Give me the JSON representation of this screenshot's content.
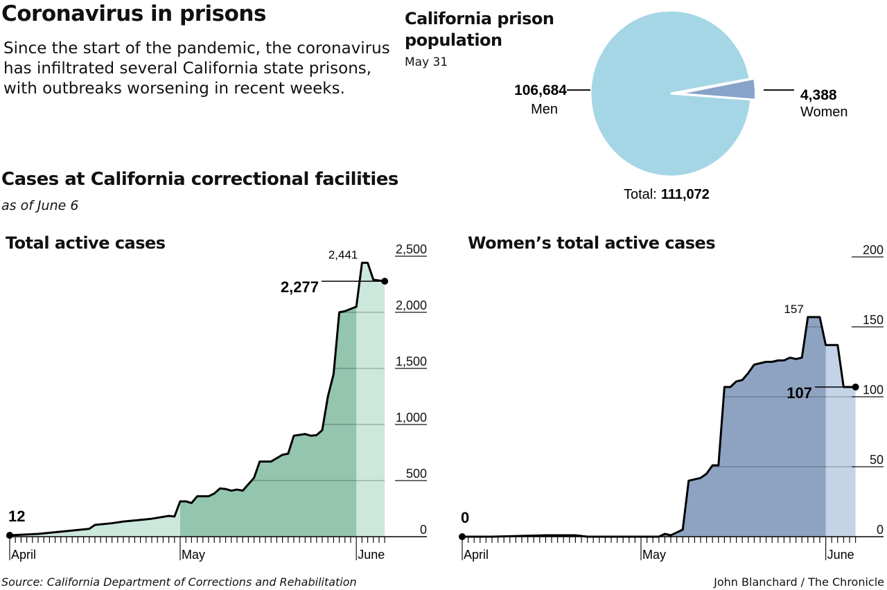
{
  "header": {
    "title": "Coronavirus in prisons",
    "dek": "Since the start of the pandemic, the coronavirus has infiltrated several California state prisons, with outbreaks worsening in recent weeks."
  },
  "section": {
    "title": "Cases at California correctional facilities",
    "subtitle": "as of June 6"
  },
  "footer": {
    "source": "Source:  California Department of Corrections and Rehabilitation",
    "credit": "John Blanchard / The Chronicle"
  },
  "chart_data": [
    {
      "type": "pie",
      "title": "California prison population",
      "subtitle": "May 31",
      "slices": [
        {
          "name": "Men",
          "label": "106,684",
          "value": 106684,
          "color": "#a5d6e6"
        },
        {
          "name": "Women",
          "label": "4,388",
          "value": 4388,
          "color": "#87a3c9"
        }
      ],
      "total_label": "Total:",
      "total_value": "111,072"
    },
    {
      "type": "area",
      "title": "Total active cases",
      "ylim": [
        0,
        2500
      ],
      "yticks": [
        0,
        500,
        1000,
        1500,
        2000,
        2500
      ],
      "ytick_labels": [
        "0",
        "500",
        "1,000",
        "1,500",
        "2,000",
        "2,500"
      ],
      "xticks": [
        "April",
        "May",
        "June"
      ],
      "grid": true,
      "colors": {
        "light": "#cce7db",
        "dark": "#93c5af"
      },
      "annotations": {
        "start": "12",
        "peak": "2,441",
        "latest": "2,277"
      },
      "points": [
        [
          "Apr 1",
          12
        ],
        [
          "Apr 6",
          25
        ],
        [
          "Apr 12",
          55
        ],
        [
          "Apr 15",
          70
        ],
        [
          "Apr 16",
          105
        ],
        [
          "Apr 19",
          120
        ],
        [
          "Apr 21",
          135
        ],
        [
          "Apr 24",
          150
        ],
        [
          "Apr 26",
          160
        ],
        [
          "Apr 29",
          185
        ],
        [
          "Apr 30",
          180
        ],
        [
          "May 1",
          315
        ],
        [
          "May 2",
          315
        ],
        [
          "May 3",
          300
        ],
        [
          "May 4",
          360
        ],
        [
          "May 6",
          360
        ],
        [
          "May 7",
          385
        ],
        [
          "May 8",
          430
        ],
        [
          "May 9",
          425
        ],
        [
          "May 10",
          410
        ],
        [
          "May 11",
          420
        ],
        [
          "May 12",
          410
        ],
        [
          "May 14",
          525
        ],
        [
          "May 15",
          670
        ],
        [
          "May 17",
          670
        ],
        [
          "May 19",
          730
        ],
        [
          "May 20",
          740
        ],
        [
          "May 21",
          900
        ],
        [
          "May 23",
          915
        ],
        [
          "May 24",
          900
        ],
        [
          "May 25",
          905
        ],
        [
          "May 26",
          950
        ],
        [
          "May 27",
          1250
        ],
        [
          "May 28",
          1450
        ],
        [
          "May 29",
          2000
        ],
        [
          "May 30",
          2010
        ],
        [
          "May 31",
          2030
        ],
        [
          "Jun 1",
          2050
        ],
        [
          "Jun 2",
          2441
        ],
        [
          "Jun 3",
          2441
        ],
        [
          "Jun 4",
          2290
        ],
        [
          "Jun 6",
          2277
        ]
      ]
    },
    {
      "type": "area",
      "title": "Women’s total active cases",
      "ylim": [
        0,
        200
      ],
      "yticks": [
        0,
        50,
        100,
        150,
        200
      ],
      "ytick_labels": [
        "0",
        "50",
        "100",
        "150",
        "200"
      ],
      "xticks": [
        "April",
        "May",
        "June"
      ],
      "grid": true,
      "colors": {
        "light": "#c4d3e6",
        "dark": "#8ea3c2"
      },
      "annotations": {
        "start": "0",
        "peak": "157",
        "latest": "107"
      },
      "points": [
        [
          "Apr 1",
          0
        ],
        [
          "Apr 6",
          0
        ],
        [
          "Apr 15",
          1
        ],
        [
          "Apr 20",
          1
        ],
        [
          "Apr 22",
          0
        ],
        [
          "May 4",
          0
        ],
        [
          "May 5",
          2
        ],
        [
          "May 6",
          1
        ],
        [
          "May 7",
          3
        ],
        [
          "May 8",
          5
        ],
        [
          "May 9",
          40
        ],
        [
          "May 10",
          41
        ],
        [
          "May 11",
          42
        ],
        [
          "May 12",
          45
        ],
        [
          "May 13",
          51
        ],
        [
          "May 14",
          51
        ],
        [
          "May 15",
          107
        ],
        [
          "May 16",
          107
        ],
        [
          "May 17",
          111
        ],
        [
          "May 18",
          112
        ],
        [
          "May 19",
          117
        ],
        [
          "May 20",
          123
        ],
        [
          "May 21",
          124
        ],
        [
          "May 22",
          125
        ],
        [
          "May 23",
          125
        ],
        [
          "May 24",
          126
        ],
        [
          "May 25",
          126
        ],
        [
          "May 26",
          128
        ],
        [
          "May 27",
          127
        ],
        [
          "May 28",
          128
        ],
        [
          "May 29",
          157
        ],
        [
          "May 30",
          157
        ],
        [
          "May 31",
          157
        ],
        [
          "Jun 1",
          137
        ],
        [
          "Jun 2",
          137
        ],
        [
          "Jun 3",
          137
        ],
        [
          "Jun 4",
          107
        ],
        [
          "Jun 5",
          107
        ],
        [
          "Jun 6",
          107
        ]
      ]
    }
  ]
}
